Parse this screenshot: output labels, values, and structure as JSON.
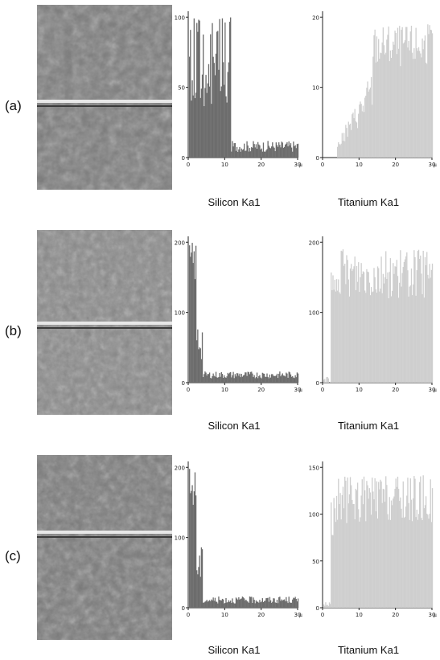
{
  "panels": [
    {
      "label": "(a)",
      "charts": [
        {
          "caption": "Silicon Ka1",
          "color": "#6d6d6d",
          "yticks": [
            "0",
            "50",
            "100"
          ],
          "xticks": [
            "0",
            "10",
            "20",
            "30"
          ],
          "profile": "si_a"
        },
        {
          "caption": "Titanium Ka1",
          "color": "#cfcfcf",
          "yticks": [
            "0",
            "10",
            "20"
          ],
          "xticks": [
            "0",
            "10",
            "20",
            "30"
          ],
          "profile": "ti_a"
        }
      ]
    },
    {
      "label": "(b)",
      "charts": [
        {
          "caption": "Silicon Ka1",
          "color": "#6d6d6d",
          "yticks": [
            "0",
            "100",
            "200"
          ],
          "xticks": [
            "0",
            "10",
            "20",
            "30"
          ],
          "profile": "si_bc"
        },
        {
          "caption": "Titanium Ka1",
          "color": "#cfcfcf",
          "yticks": [
            "0",
            "100",
            "200"
          ],
          "xticks": [
            "0",
            "10",
            "20",
            "30"
          ],
          "profile": "ti_bc"
        }
      ]
    },
    {
      "label": "(c)",
      "charts": [
        {
          "caption": "Silicon Ka1",
          "color": "#6d6d6d",
          "yticks": [
            "0",
            "100",
            "200"
          ],
          "xticks": [
            "0",
            "10",
            "20",
            "30"
          ],
          "profile": "si_bc"
        },
        {
          "caption": "Titanium Ka1",
          "color": "#cfcfcf",
          "yticks": [
            "0",
            "50",
            "100",
            "150"
          ],
          "xticks": [
            "0",
            "10",
            "20",
            "30"
          ],
          "profile": "ti_c"
        }
      ]
    }
  ],
  "x_unit": "μm"
}
